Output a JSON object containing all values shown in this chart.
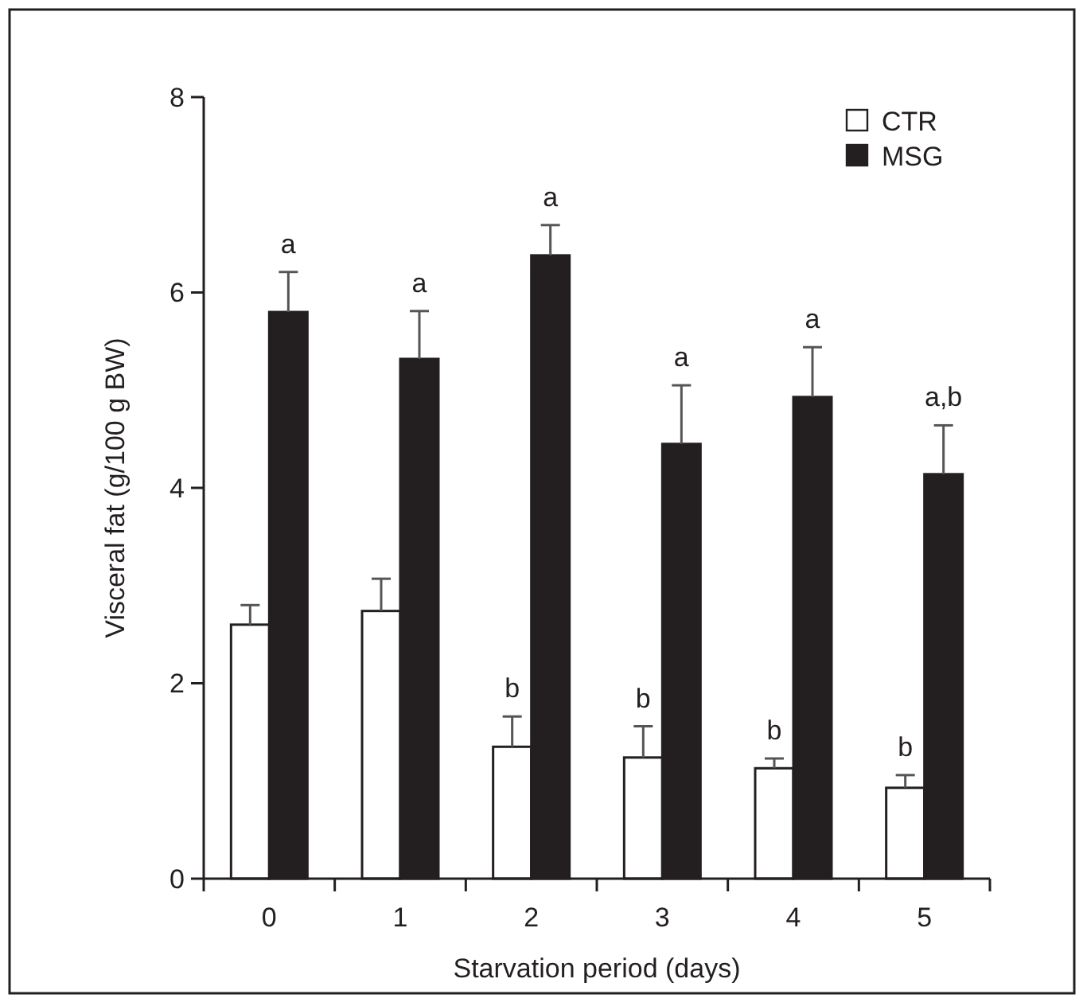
{
  "chart_data": {
    "type": "bar",
    "xlabel": "Starvation period (days)",
    "ylabel": "Visceral fat (g/100 g BW)",
    "categories": [
      "0",
      "1",
      "2",
      "3",
      "4",
      "5"
    ],
    "series": [
      {
        "name": "CTR",
        "color": "#ffffff",
        "values": [
          2.6,
          2.74,
          1.35,
          1.24,
          1.13,
          0.93
        ],
        "errors": [
          0.2,
          0.33,
          0.31,
          0.32,
          0.1,
          0.13
        ]
      },
      {
        "name": "MSG",
        "color": "#231f20",
        "values": [
          5.8,
          5.32,
          6.38,
          4.45,
          4.93,
          4.14
        ],
        "errors": [
          0.41,
          0.49,
          0.31,
          0.6,
          0.51,
          0.5
        ]
      }
    ],
    "ylim": [
      0,
      8
    ],
    "yticks": [
      0,
      2,
      4,
      6,
      8
    ],
    "grid": false,
    "legend": "top right",
    "annotations": [
      {
        "text": "a",
        "x": "0",
        "y": 5.8
      },
      {
        "text": "a",
        "x": "1",
        "y": 5.32
      },
      {
        "text": "b",
        "x": "2",
        "y": 1.35
      },
      {
        "text": "a",
        "x": "2",
        "y": 6.38
      },
      {
        "text": "b",
        "x": "3",
        "y": 1.24
      },
      {
        "text": "a",
        "x": "3",
        "y": 4.45
      },
      {
        "text": "b",
        "x": "4",
        "y": 1.13
      },
      {
        "text": "a",
        "x": "4",
        "y": 4.93
      },
      {
        "text": "b",
        "x": "5",
        "y": 0.93
      },
      {
        "text": "a,b",
        "x": "5",
        "y": 4.14
      }
    ]
  }
}
